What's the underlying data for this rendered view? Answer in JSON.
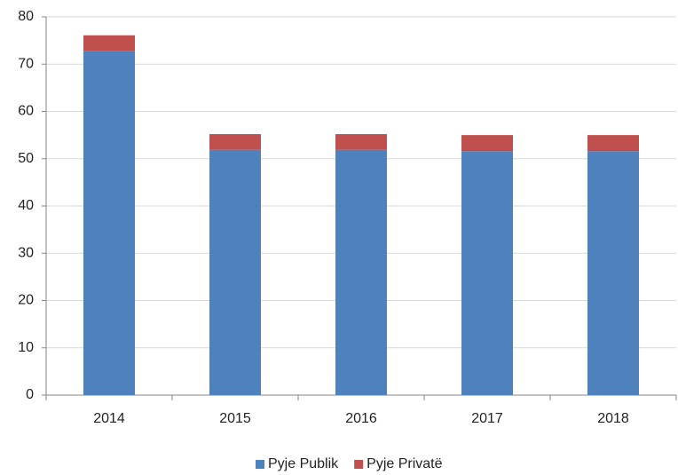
{
  "chart_data": {
    "type": "stacked_bar",
    "categories": [
      "2014",
      "2015",
      "2016",
      "2017",
      "2018"
    ],
    "series": [
      {
        "name": "Pyje Publik",
        "color": "#4f81bd",
        "values": [
          72.8,
          51.9,
          51.9,
          51.6,
          51.6
        ]
      },
      {
        "name": "Pyje Privatë",
        "color": "#c0504d",
        "values": [
          3.3,
          3.3,
          3.3,
          3.4,
          3.4
        ]
      }
    ],
    "ylim": [
      0,
      80
    ],
    "yticks": [
      0,
      10,
      20,
      30,
      40,
      50,
      60,
      70,
      80
    ],
    "grid": true,
    "legend": "bottom"
  }
}
